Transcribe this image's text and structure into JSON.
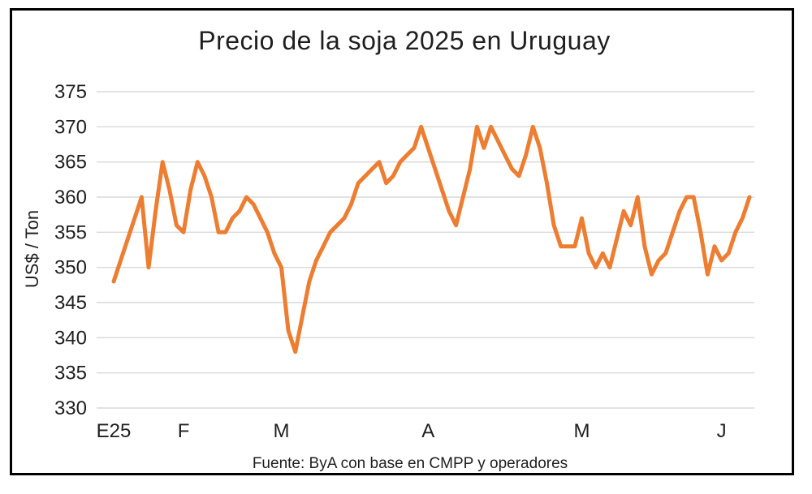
{
  "chart_data": {
    "type": "line",
    "title": "Precio de la soja 2025 en Uruguay",
    "ylabel": "US$ / Ton",
    "source": "Fuente: ByA con base en CMPP y operadores",
    "x_tick_labels": [
      "E25",
      "F",
      "M",
      "A",
      "M",
      "J"
    ],
    "x_tick_point_indices": [
      0,
      10,
      24,
      45,
      67,
      87
    ],
    "y_ticks": [
      330,
      335,
      340,
      345,
      350,
      355,
      360,
      365,
      370,
      375
    ],
    "ylim": [
      330,
      375
    ],
    "grid": "horizontal",
    "legend": "none",
    "colors": {
      "series": "#ED7D31",
      "gridline": "#D9D9D9",
      "text": "#1F1F1F",
      "frame": "#000000"
    },
    "values": [
      348,
      351,
      354,
      357,
      360,
      350,
      358,
      365,
      361,
      356,
      355,
      361,
      365,
      363,
      360,
      355,
      355,
      357,
      358,
      360,
      359,
      357,
      355,
      352,
      350,
      341,
      338,
      343,
      348,
      351,
      353,
      355,
      356,
      357,
      359,
      362,
      363,
      364,
      365,
      362,
      363,
      365,
      366,
      367,
      370,
      367,
      364,
      361,
      358,
      356,
      360,
      364,
      370,
      367,
      370,
      368,
      366,
      364,
      363,
      366,
      370,
      367,
      362,
      356,
      353,
      353,
      353,
      357,
      352,
      350,
      352,
      350,
      354,
      358,
      356,
      360,
      353,
      349,
      351,
      352,
      355,
      358,
      360,
      360,
      355,
      349,
      353,
      351,
      352,
      355,
      357,
      360
    ]
  }
}
